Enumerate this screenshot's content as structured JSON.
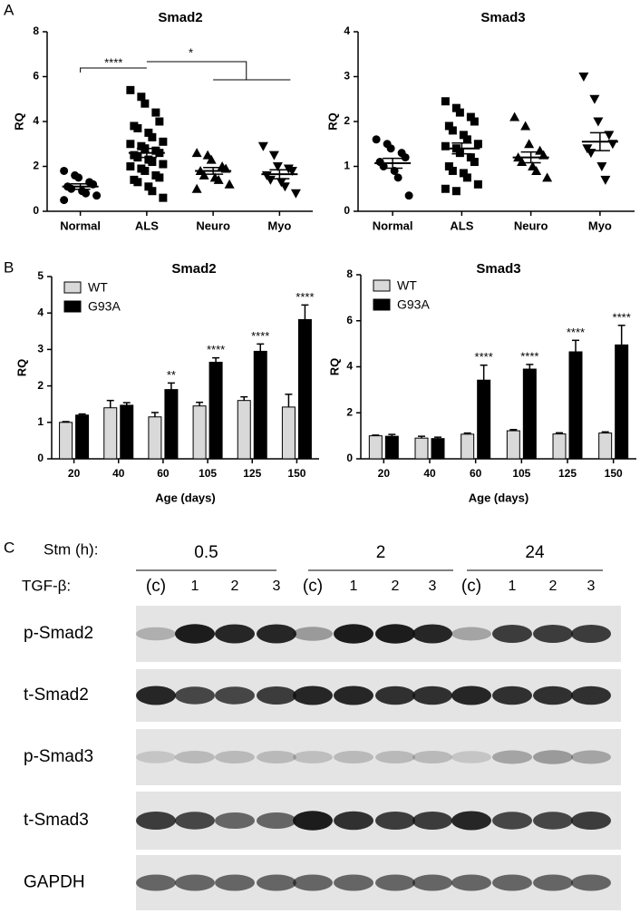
{
  "panel_labels": [
    "A",
    "B",
    "C"
  ],
  "chart_data": [
    {
      "type": "strip",
      "title": "Smad2",
      "y_label": "RQ",
      "categories": [
        "Normal",
        "ALS",
        "Neuro",
        "Myo"
      ],
      "markers": [
        "circle",
        "square",
        "triangle",
        "triangle-down"
      ],
      "color": "#000000",
      "points": [
        [
          1.8,
          1.6,
          1.5,
          1.3,
          1.2,
          1.1,
          1.0,
          0.9,
          0.8,
          0.7,
          0.5
        ],
        [
          5.4,
          5.1,
          4.8,
          4.4,
          4.0,
          3.8,
          3.7,
          3.5,
          3.3,
          3.1,
          3.0,
          2.9,
          2.8,
          2.7,
          2.6,
          2.5,
          2.4,
          2.3,
          2.2,
          2.1,
          2.0,
          1.9,
          1.8,
          1.6,
          1.5,
          1.4,
          1.3,
          1.1,
          0.9,
          0.6
        ],
        [
          2.6,
          2.5,
          2.3,
          2.0,
          1.9,
          1.8,
          1.6,
          1.5,
          1.4,
          1.2,
          1.0
        ],
        [
          2.9,
          2.5,
          2.0,
          1.9,
          1.8,
          1.6,
          1.4,
          1.3,
          1.1,
          0.8
        ]
      ],
      "mean": [
        1.1,
        2.6,
        1.8,
        1.65
      ],
      "sem": [
        0.12,
        0.2,
        0.15,
        0.2
      ],
      "annotations": [
        "****",
        "*"
      ],
      "ylim": [
        0,
        8
      ],
      "yticks": [
        0,
        2,
        4,
        6,
        8
      ]
    },
    {
      "type": "strip",
      "title": "Smad3",
      "y_label": "RQ",
      "categories": [
        "Normal",
        "ALS",
        "Neuro",
        "Myo"
      ],
      "markers": [
        "circle",
        "square",
        "triangle",
        "triangle-down"
      ],
      "color": "#000000",
      "points": [
        [
          1.6,
          1.5,
          1.4,
          1.3,
          1.2,
          1.1,
          1.0,
          0.9,
          0.75,
          0.35
        ],
        [
          2.45,
          2.3,
          2.2,
          2.1,
          2.0,
          1.9,
          1.8,
          1.7,
          1.6,
          1.5,
          1.45,
          1.4,
          1.3,
          1.2,
          1.1,
          1.0,
          0.9,
          0.85,
          0.75,
          0.6,
          0.5,
          0.45
        ],
        [
          2.1,
          1.9,
          1.5,
          1.35,
          1.25,
          1.2,
          1.1,
          1.0,
          0.9,
          0.75
        ],
        [
          3.0,
          2.5,
          2.0,
          1.7,
          1.5,
          1.4,
          1.3,
          1.0,
          0.7
        ]
      ],
      "mean": [
        1.07,
        1.4,
        1.2,
        1.55
      ],
      "sem": [
        0.11,
        0.12,
        0.12,
        0.2
      ],
      "annotations": [],
      "ylim": [
        0,
        4
      ],
      "yticks": [
        0,
        1,
        2,
        3,
        4
      ]
    },
    {
      "type": "bar",
      "title": "Smad2",
      "y_label": "RQ",
      "x_label": "Age (days)",
      "categories": [
        "20",
        "40",
        "60",
        "105",
        "125",
        "150"
      ],
      "legend": "upper left",
      "series": [
        {
          "name": "WT",
          "color": "#d9d9d9",
          "values": [
            1.0,
            1.4,
            1.15,
            1.45,
            1.6,
            1.42
          ],
          "errors": [
            0.02,
            0.2,
            0.12,
            0.1,
            0.1,
            0.35
          ]
        },
        {
          "name": "G93A",
          "color": "#000000",
          "values": [
            1.2,
            1.47,
            1.9,
            2.65,
            2.95,
            3.82
          ],
          "errors": [
            0.03,
            0.07,
            0.18,
            0.12,
            0.2,
            0.4
          ],
          "annotations": [
            null,
            null,
            "**",
            "****",
            "****",
            "****"
          ]
        }
      ],
      "ylim": [
        0,
        5
      ],
      "yticks": [
        0,
        1,
        2,
        3,
        4,
        5
      ]
    },
    {
      "type": "bar",
      "title": "Smad3",
      "y_label": "RQ",
      "x_label": "Age (days)",
      "categories": [
        "20",
        "40",
        "60",
        "105",
        "125",
        "150"
      ],
      "legend": "upper left",
      "series": [
        {
          "name": "WT",
          "color": "#d9d9d9",
          "values": [
            1.0,
            0.9,
            1.07,
            1.22,
            1.08,
            1.12
          ],
          "errors": [
            0.03,
            0.08,
            0.05,
            0.05,
            0.05,
            0.05
          ]
        },
        {
          "name": "G93A",
          "color": "#000000",
          "values": [
            0.98,
            0.88,
            3.42,
            3.9,
            4.65,
            4.95
          ],
          "errors": [
            0.08,
            0.06,
            0.65,
            0.2,
            0.5,
            0.85
          ],
          "annotations": [
            null,
            null,
            "****",
            "****",
            "****",
            "****"
          ]
        }
      ],
      "ylim": [
        0,
        8
      ],
      "yticks": [
        0,
        2,
        4,
        6,
        8
      ]
    }
  ],
  "blot": {
    "stm_label": "Stm (h):",
    "stm": [
      "0.5",
      "2",
      "24"
    ],
    "tgf_label": "TGF-β:",
    "lanes": [
      "(c)",
      "1",
      "2",
      "3"
    ],
    "rows": [
      "p-Smad2",
      "t-Smad2",
      "p-Smad3",
      "t-Smad3",
      "GAPDH"
    ]
  }
}
